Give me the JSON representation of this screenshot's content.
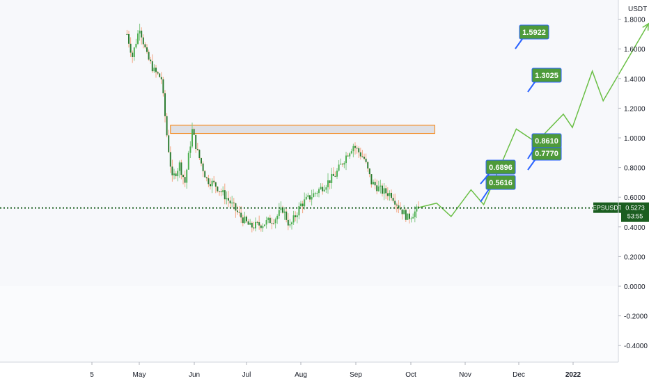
{
  "chart_data": {
    "type": "candlestick",
    "quote_unit": "USDT",
    "symbol": "EPSUSDT",
    "last_price": "0.5273",
    "countdown": "53:55",
    "y_ticks": [
      "1.8000",
      "1.6000",
      "1.4000",
      "1.2000",
      "1.0000",
      "0.8000",
      "0.6000",
      "0.4000",
      "0.2000",
      "0.0000",
      "-0.2000",
      "-0.4000"
    ],
    "y_tick_values": [
      1.8,
      1.6,
      1.4,
      1.2,
      1.0,
      0.8,
      0.6,
      0.4,
      0.2,
      0.0,
      -0.2,
      -0.4
    ],
    "x_ticks": [
      "5",
      "May",
      "Jun",
      "Jul",
      "Aug",
      "Sep",
      "Oct",
      "Nov",
      "Dec",
      "2022"
    ],
    "resistance_zone": {
      "y_low": 1.03,
      "y_high": 1.085,
      "x_start": "2021-05-19",
      "x_end": "2021-10-12"
    },
    "current_price_line": 0.5273,
    "projection_path": [
      {
        "x": "2021-10-03",
        "y": 0.53
      },
      {
        "x": "2021-10-13",
        "y": 0.56
      },
      {
        "x": "2021-10-21",
        "y": 0.47
      },
      {
        "x": "2021-11-01",
        "y": 0.65
      },
      {
        "x": "2021-11-08",
        "y": 0.55
      },
      {
        "x": "2021-11-26",
        "y": 1.06
      },
      {
        "x": "2021-12-07",
        "y": 0.97
      },
      {
        "x": "2021-12-22",
        "y": 1.16
      },
      {
        "x": "2021-12-27",
        "y": 1.07
      },
      {
        "x": "2022-01-07",
        "y": 1.45
      },
      {
        "x": "2022-01-13",
        "y": 1.25
      },
      {
        "x": "2022-02-07",
        "y": 1.77
      }
    ],
    "targets": [
      {
        "label": "0.5616"
      },
      {
        "label": "0.6896"
      },
      {
        "label": "0.7770"
      },
      {
        "label": "0.8610"
      },
      {
        "label": "1.3025"
      },
      {
        "label": "1.5922"
      }
    ]
  },
  "colors": {
    "up": "#26a69a",
    "down": "#ef5350",
    "green_candle": "#4caf50",
    "projection": "#6abf45",
    "callout_fill": "#4e9a3a",
    "callout_border": "#2962ff",
    "price_line": "#1b5e20",
    "zone_fill": "#b2b5be",
    "zone_border": "#f57c00"
  }
}
